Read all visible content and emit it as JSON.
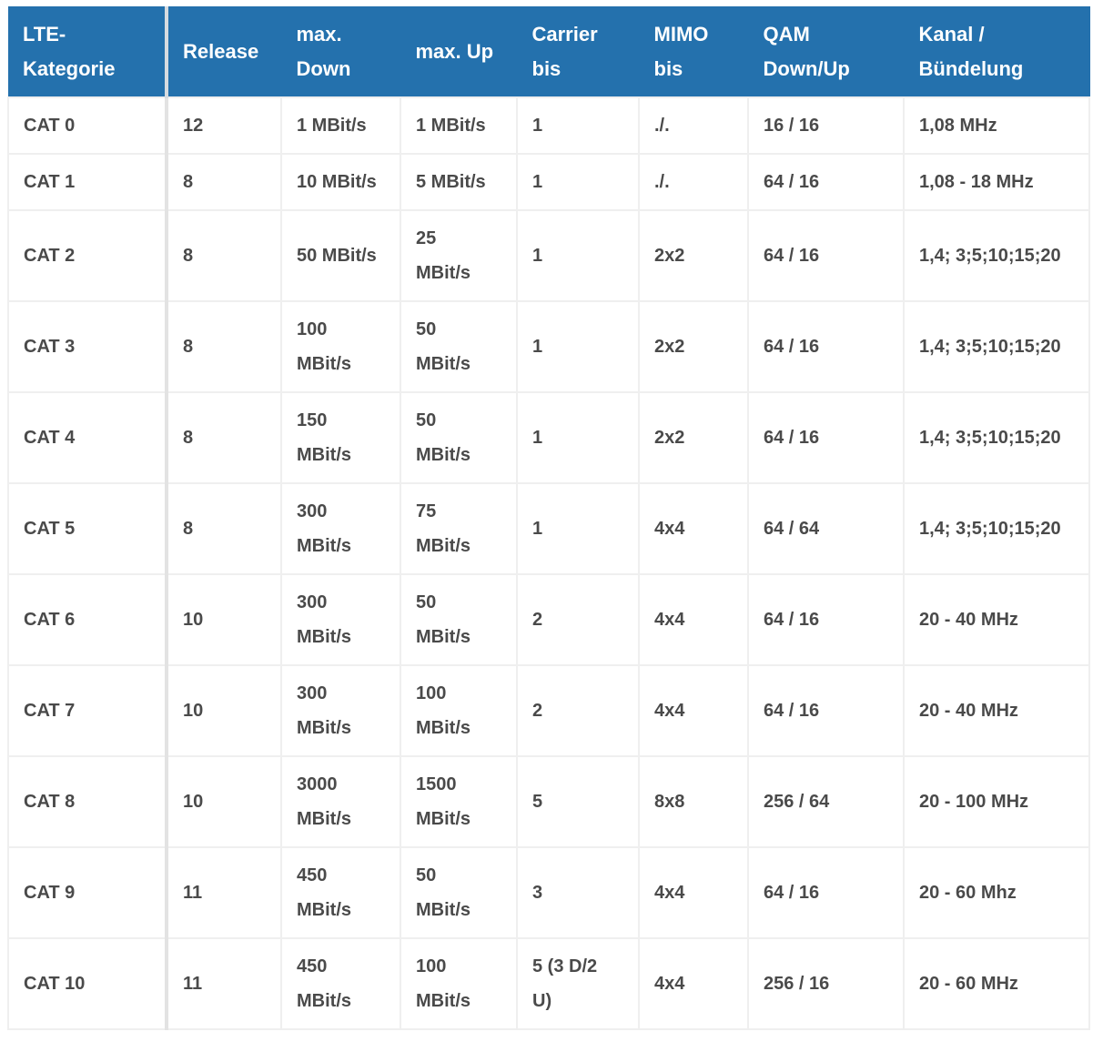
{
  "table": {
    "headers": [
      [
        "LTE-",
        "Kategorie"
      ],
      [
        "Release"
      ],
      [
        "max.",
        "Down"
      ],
      [
        "max. Up"
      ],
      [
        "Carrier",
        "bis"
      ],
      [
        "MIMO",
        "bis"
      ],
      [
        "QAM",
        "Down/Up"
      ],
      [
        "Kanal /",
        "Bündelung"
      ]
    ],
    "rows": [
      {
        "cells": [
          [
            "CAT 0"
          ],
          [
            "12"
          ],
          [
            "1 MBit/s"
          ],
          [
            "1 MBit/s"
          ],
          [
            "1"
          ],
          [
            "./."
          ],
          [
            "16 / 16"
          ],
          [
            "1,08 MHz"
          ]
        ],
        "short": true
      },
      {
        "cells": [
          [
            "CAT 1"
          ],
          [
            "8"
          ],
          [
            "10 MBit/s"
          ],
          [
            "5 MBit/s"
          ],
          [
            "1"
          ],
          [
            "./."
          ],
          [
            "64 / 16"
          ],
          [
            "1,08 - 18 MHz"
          ]
        ],
        "short": true
      },
      {
        "cells": [
          [
            "CAT 2"
          ],
          [
            "8"
          ],
          [
            "50 MBit/s"
          ],
          [
            "25",
            "MBit/s"
          ],
          [
            "1"
          ],
          [
            "2x2"
          ],
          [
            "64 / 16"
          ],
          [
            "1,4; 3;5;10;15;20"
          ]
        ]
      },
      {
        "cells": [
          [
            "CAT 3"
          ],
          [
            "8"
          ],
          [
            "100",
            "MBit/s"
          ],
          [
            "50",
            "MBit/s"
          ],
          [
            "1"
          ],
          [
            "2x2"
          ],
          [
            "64 / 16"
          ],
          [
            "1,4; 3;5;10;15;20"
          ]
        ]
      },
      {
        "cells": [
          [
            "CAT 4"
          ],
          [
            "8"
          ],
          [
            "150",
            "MBit/s"
          ],
          [
            "50",
            "MBit/s"
          ],
          [
            "1"
          ],
          [
            "2x2"
          ],
          [
            "64 / 16"
          ],
          [
            "1,4; 3;5;10;15;20"
          ]
        ]
      },
      {
        "cells": [
          [
            "CAT 5"
          ],
          [
            "8"
          ],
          [
            "300",
            "MBit/s"
          ],
          [
            "75",
            "MBit/s"
          ],
          [
            "1"
          ],
          [
            "4x4"
          ],
          [
            "64 / 64"
          ],
          [
            "1,4; 3;5;10;15;20"
          ]
        ]
      },
      {
        "cells": [
          [
            "CAT 6"
          ],
          [
            "10"
          ],
          [
            "300",
            "MBit/s"
          ],
          [
            "50",
            "MBit/s"
          ],
          [
            "2"
          ],
          [
            "4x4"
          ],
          [
            "64 / 16"
          ],
          [
            "20 - 40 MHz"
          ]
        ]
      },
      {
        "cells": [
          [
            "CAT 7"
          ],
          [
            "10"
          ],
          [
            "300",
            "MBit/s"
          ],
          [
            "100",
            "MBit/s"
          ],
          [
            "2"
          ],
          [
            "4x4"
          ],
          [
            "64 / 16"
          ],
          [
            "20 - 40 MHz"
          ]
        ]
      },
      {
        "cells": [
          [
            "CAT 8"
          ],
          [
            "10"
          ],
          [
            "3000",
            "MBit/s"
          ],
          [
            "1500",
            "MBit/s"
          ],
          [
            "5"
          ],
          [
            "8x8"
          ],
          [
            "256 / 64"
          ],
          [
            "20 - 100 MHz"
          ]
        ]
      },
      {
        "cells": [
          [
            "CAT 9"
          ],
          [
            "11"
          ],
          [
            "450",
            "MBit/s"
          ],
          [
            "50",
            "MBit/s"
          ],
          [
            "3"
          ],
          [
            "4x4"
          ],
          [
            "64 / 16"
          ],
          [
            "20 - 60 Mhz"
          ]
        ]
      },
      {
        "cells": [
          [
            "CAT 10"
          ],
          [
            "11"
          ],
          [
            "450",
            "MBit/s"
          ],
          [
            "100",
            "MBit/s"
          ],
          [
            "5 (3 D/2",
            "U)"
          ],
          [
            "4x4"
          ],
          [
            "256 / 16"
          ],
          [
            "20 - 60 MHz"
          ]
        ]
      }
    ]
  },
  "colors": {
    "header_bg": "#2471ad",
    "header_text": "#ffffff",
    "body_text": "#4a4a4a",
    "grid": "#efefef"
  }
}
